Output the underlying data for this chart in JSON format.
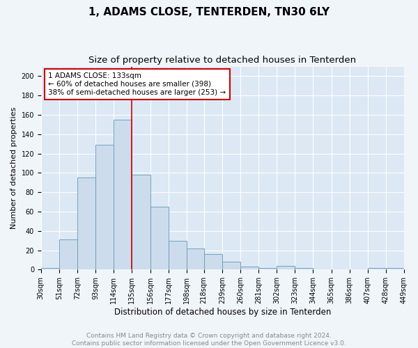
{
  "title": "1, ADAMS CLOSE, TENTERDEN, TN30 6LY",
  "subtitle": "Size of property relative to detached houses in Tenterden",
  "xlabel": "Distribution of detached houses by size in Tenterden",
  "ylabel": "Number of detached properties",
  "bar_color": "#ccdcec",
  "bar_edge_color": "#6699bb",
  "background_color": "#dce8f4",
  "grid_color": "#ffffff",
  "vline_x": 135,
  "vline_color": "#cc0000",
  "annotation_box_color": "#ffffff",
  "annotation_edge_color": "#cc0000",
  "annotation_line1": "1 ADAMS CLOSE: 133sqm",
  "annotation_line2": "← 60% of detached houses are smaller (398)",
  "annotation_line3": "38% of semi-detached houses are larger (253) →",
  "bin_edges": [
    30,
    51,
    72,
    93,
    114,
    135,
    156,
    177,
    198,
    218,
    239,
    260,
    281,
    302,
    323,
    344,
    365,
    386,
    407,
    428,
    449
  ],
  "bin_heights": [
    2,
    31,
    95,
    129,
    155,
    98,
    65,
    30,
    22,
    16,
    8,
    3,
    2,
    4,
    2,
    0,
    0,
    0,
    2,
    2
  ],
  "ylim": [
    0,
    210
  ],
  "yticks": [
    0,
    20,
    40,
    60,
    80,
    100,
    120,
    140,
    160,
    180,
    200
  ],
  "footer_text": "Contains HM Land Registry data © Crown copyright and database right 2024.\nContains public sector information licensed under the Open Government Licence v3.0.",
  "title_fontsize": 11,
  "subtitle_fontsize": 9.5,
  "xlabel_fontsize": 8.5,
  "ylabel_fontsize": 8,
  "tick_fontsize": 7,
  "annotation_fontsize": 7.5,
  "footer_fontsize": 6.5
}
